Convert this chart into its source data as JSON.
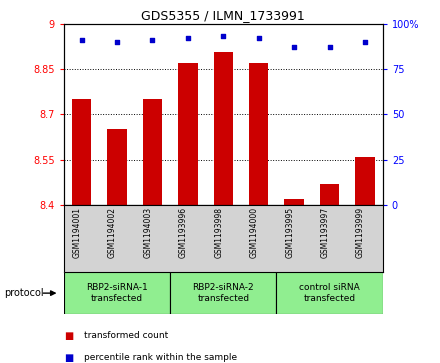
{
  "title": "GDS5355 / ILMN_1733991",
  "samples": [
    "GSM1194001",
    "GSM1194002",
    "GSM1194003",
    "GSM1193996",
    "GSM1193998",
    "GSM1194000",
    "GSM1193995",
    "GSM1193997",
    "GSM1193999"
  ],
  "bar_values": [
    8.75,
    8.65,
    8.75,
    8.87,
    8.905,
    8.87,
    8.42,
    8.47,
    8.56
  ],
  "percentile_values": [
    91,
    90,
    91,
    92,
    93,
    92,
    87,
    87,
    90
  ],
  "ylim_left": [
    8.4,
    9.0
  ],
  "ylim_right": [
    0,
    100
  ],
  "yticks_left": [
    8.4,
    8.55,
    8.7,
    8.85,
    9.0
  ],
  "yticks_right": [
    0,
    25,
    50,
    75,
    100
  ],
  "ytick_labels_left": [
    "8.4",
    "8.55",
    "8.7",
    "8.85",
    "9"
  ],
  "ytick_labels_right": [
    "0",
    "25",
    "50",
    "75",
    "100%"
  ],
  "groups": [
    {
      "label": "RBP2-siRNA-1\ntransfected",
      "start": 0,
      "end": 3,
      "color": "#90ee90"
    },
    {
      "label": "RBP2-siRNA-2\ntransfected",
      "start": 3,
      "end": 6,
      "color": "#90ee90"
    },
    {
      "label": "control siRNA\ntransfected",
      "start": 6,
      "end": 9,
      "color": "#90ee90"
    }
  ],
  "bar_color": "#cc0000",
  "dot_color": "#0000cc",
  "bar_width": 0.55,
  "bg_color": "#d3d3d3",
  "plot_bg": "#ffffff",
  "protocol_label": "protocol",
  "legend_bar_label": "transformed count",
  "legend_dot_label": "percentile rank within the sample"
}
